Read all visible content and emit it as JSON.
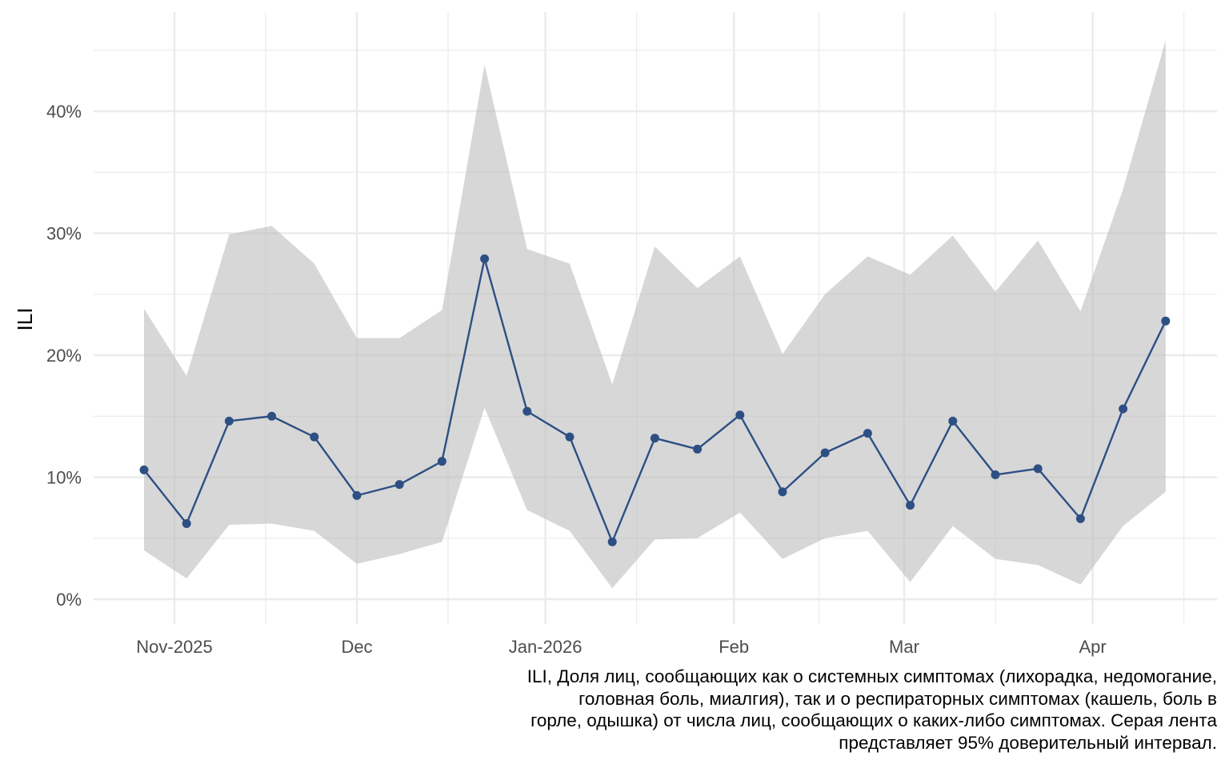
{
  "chart_data": {
    "type": "line",
    "title": "",
    "xlabel": "",
    "ylabel": "ILI",
    "x": [
      "2025-10-27",
      "2025-11-03",
      "2025-11-10",
      "2025-11-17",
      "2025-11-24",
      "2025-12-01",
      "2025-12-08",
      "2025-12-15",
      "2025-12-22",
      "2025-12-29",
      "2026-01-05",
      "2026-01-12",
      "2026-01-19",
      "2026-01-26",
      "2026-02-02",
      "2026-02-09",
      "2026-02-16",
      "2026-02-23",
      "2026-03-02",
      "2026-03-09",
      "2026-03-16",
      "2026-03-23",
      "2026-03-30",
      "2026-04-06",
      "2026-04-13"
    ],
    "series": [
      {
        "name": "ILI",
        "color": "#2d4f84",
        "values": [
          10.6,
          6.2,
          14.6,
          15.0,
          13.3,
          8.5,
          9.4,
          11.3,
          27.9,
          15.4,
          13.3,
          4.7,
          13.2,
          12.3,
          15.1,
          8.8,
          12.0,
          13.6,
          7.7,
          14.6,
          10.2,
          10.7,
          6.6,
          15.6,
          22.8
        ]
      },
      {
        "name": "95% CI lower",
        "color": "#d6d6d6",
        "values": [
          4.0,
          1.7,
          6.1,
          6.2,
          5.6,
          2.9,
          3.7,
          4.7,
          15.7,
          7.3,
          5.6,
          0.9,
          4.9,
          5.0,
          7.1,
          3.3,
          5.0,
          5.6,
          1.4,
          6.0,
          3.3,
          2.8,
          1.2,
          6.0,
          8.8
        ]
      },
      {
        "name": "95% CI upper",
        "color": "#d6d6d6",
        "values": [
          23.8,
          18.3,
          29.9,
          30.6,
          27.5,
          21.4,
          21.4,
          23.7,
          43.8,
          28.7,
          27.5,
          17.6,
          28.9,
          25.5,
          28.1,
          20.1,
          25.0,
          28.1,
          26.6,
          29.8,
          25.2,
          29.4,
          23.6,
          33.6,
          45.8
        ]
      }
    ],
    "yticks": [
      0,
      10,
      20,
      30,
      40
    ],
    "ytick_labels": [
      "0%",
      "10%",
      "20%",
      "30%",
      "40%"
    ],
    "ylim": [
      -2.0,
      47.5
    ],
    "xlim": [
      "2025-10-14",
      "2026-04-30"
    ],
    "xticks": [
      "2025-11-01",
      "2025-12-01",
      "2026-01-01",
      "2026-02-01",
      "2026-03-01",
      "2026-04-01"
    ],
    "xtick_labels": [
      "Nov-2025",
      "Dec",
      "Jan-2026",
      "Feb",
      "Mar",
      "Apr"
    ],
    "x_minor_ticks": [
      "2025-11-16",
      "2025-12-16",
      "2026-01-16",
      "2026-02-15",
      "2026-03-16",
      "2026-04-16"
    ],
    "grid": true,
    "legend": "none"
  },
  "caption": {
    "lines": [
      "ILI, Доля лиц, сообщающих как о системных симптомах (лихорадка, недомогание,",
      "головная боль, миалгия), так и о респираторных симптомах (кашель, боль в",
      "горле, одышка) от числа лиц, сообщающих о каких-либо симптомах. Серая лента",
      "представляет 95% доверительный интервал."
    ]
  }
}
